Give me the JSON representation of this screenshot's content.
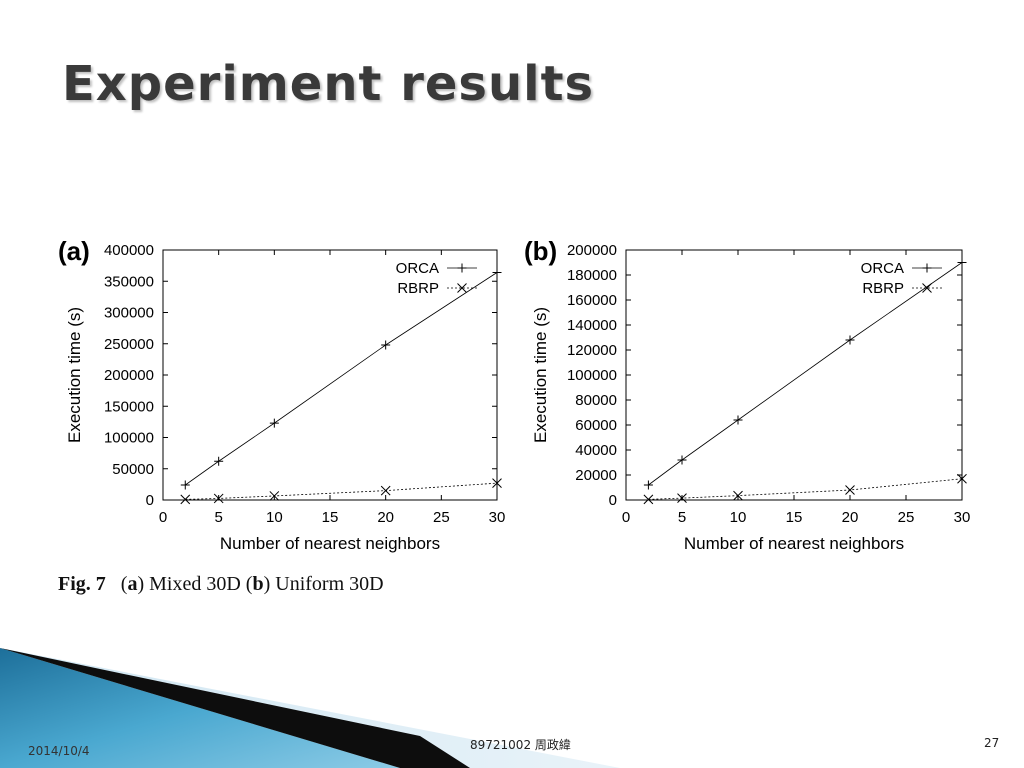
{
  "slide": {
    "title": "Experiment results",
    "caption_fig": "Fig. 7",
    "caption_a_letter": "a",
    "caption_a_text": "Mixed 30D",
    "caption_b_letter": "b",
    "caption_b_text": "Uniform 30D",
    "footer_date": "2014/10/4",
    "footer_center": "89721002 周政緯",
    "footer_page": "27"
  },
  "chart_data": [
    {
      "panel_label": "(a)",
      "type": "line",
      "xlabel": "Number of nearest neighbors",
      "ylabel": "Execution time (s)",
      "xlim": [
        0,
        30
      ],
      "ylim": [
        0,
        400000
      ],
      "xticks": [
        0,
        5,
        10,
        15,
        20,
        25,
        30
      ],
      "yticks": [
        0,
        50000,
        100000,
        150000,
        200000,
        250000,
        300000,
        350000,
        400000
      ],
      "legend_position": "top-right",
      "grid": false,
      "series": [
        {
          "name": "ORCA",
          "marker": "plus",
          "line_style": "solid",
          "x": [
            2,
            5,
            10,
            20,
            30
          ],
          "y": [
            24000,
            62000,
            123000,
            248000,
            364000
          ]
        },
        {
          "name": "RBRP",
          "marker": "x",
          "line_style": "dotted",
          "x": [
            2,
            5,
            10,
            20,
            30
          ],
          "y": [
            1000,
            2500,
            6500,
            15000,
            27000
          ]
        }
      ]
    },
    {
      "panel_label": "(b)",
      "type": "line",
      "xlabel": "Number of nearest neighbors",
      "ylabel": "Execution time (s)",
      "xlim": [
        0,
        30
      ],
      "ylim": [
        0,
        200000
      ],
      "xticks": [
        0,
        5,
        10,
        15,
        20,
        25,
        30
      ],
      "yticks": [
        0,
        20000,
        40000,
        60000,
        80000,
        100000,
        120000,
        140000,
        160000,
        180000,
        200000
      ],
      "legend_position": "top-right",
      "grid": false,
      "series": [
        {
          "name": "ORCA",
          "marker": "plus",
          "line_style": "solid",
          "x": [
            2,
            5,
            10,
            20,
            30
          ],
          "y": [
            12000,
            32000,
            64000,
            128000,
            190000
          ]
        },
        {
          "name": "RBRP",
          "marker": "x",
          "line_style": "dotted",
          "x": [
            2,
            5,
            10,
            20,
            30
          ],
          "y": [
            500,
            1500,
            3500,
            8000,
            17000
          ]
        }
      ]
    }
  ]
}
